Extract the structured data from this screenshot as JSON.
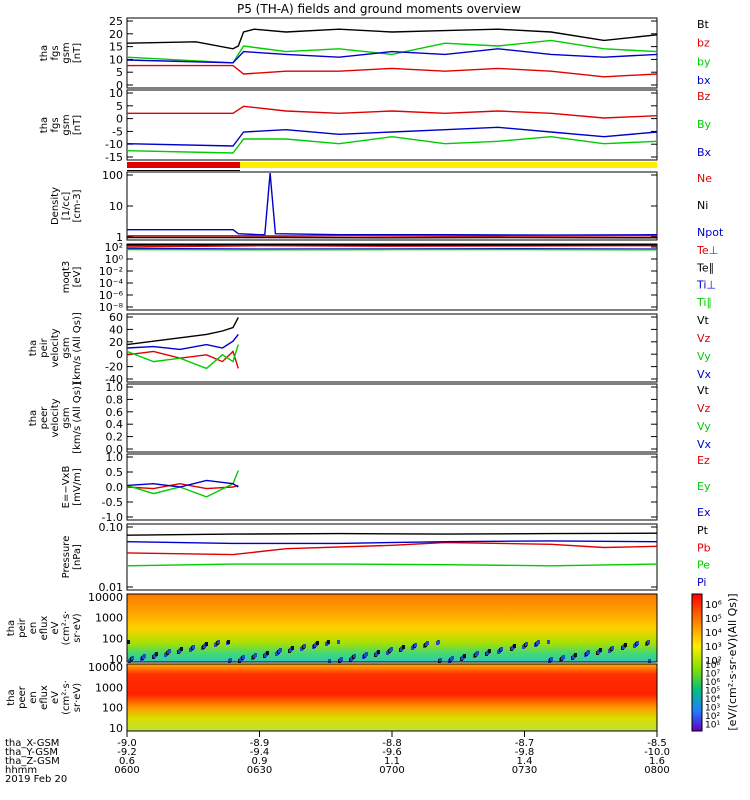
{
  "title": "P5 (TH-A) fields and ground moments overview",
  "panels": [
    {
      "id": "fgs_gsm",
      "ylabel": [
        "tha",
        "fgs",
        "gsm",
        "[nT]"
      ],
      "ticks": [
        "25",
        "20",
        "15",
        "10",
        "5",
        "0"
      ],
      "scale": "linear",
      "ylim": [
        0,
        25
      ],
      "legend": [
        {
          "text": "Bt",
          "color": "#000000"
        },
        {
          "text": "bz",
          "color": "#e00000"
        },
        {
          "text": "by",
          "color": "#00cc00"
        },
        {
          "text": "bx",
          "color": "#0000cc"
        }
      ]
    },
    {
      "id": "fgs_gse",
      "ylabel": [
        "tha",
        "fgs",
        "gsm",
        "[nT]"
      ],
      "ticks": [
        "10",
        "5",
        "0",
        "-5",
        "-10",
        "-15"
      ],
      "scale": "linear",
      "ylim": [
        -18,
        12
      ],
      "legend": [
        {
          "text": "Bz",
          "color": "#e00000"
        },
        {
          "text": "By",
          "color": "#00cc00"
        },
        {
          "text": "Bx",
          "color": "#0000cc"
        }
      ]
    },
    {
      "id": "density",
      "ylabel": [
        "Density",
        "[1/cc]",
        "[cm-3]"
      ],
      "ticks": [
        "100",
        "10",
        "1"
      ],
      "scale": "log",
      "ylim": [
        0.3,
        200
      ],
      "legend": [
        {
          "text": "Ne",
          "color": "#e00000"
        },
        {
          "text": "Ni",
          "color": "#000000"
        },
        {
          "text": "Npot",
          "color": "#0000cc"
        }
      ]
    },
    {
      "id": "temp",
      "ylabel": [
        "moqt3",
        "[eV]"
      ],
      "ticks": [
        "10²",
        "10⁰",
        "10⁻²",
        "10⁻⁴",
        "10⁻⁶",
        "10⁻⁸"
      ],
      "scale": "log",
      "ylim": [
        1e-09,
        1000.0
      ],
      "legend": [
        {
          "text": "Te⊥",
          "color": "#e00000"
        },
        {
          "text": "Te∥",
          "color": "#000000"
        },
        {
          "text": "Ti⊥",
          "color": "#0000cc"
        },
        {
          "text": "Ti∥",
          "color": "#00cc00"
        }
      ]
    },
    {
      "id": "vi",
      "ylabel": [
        "tha",
        "peir",
        "velocity",
        "gsm",
        "[km/s (All Qs)]"
      ],
      "ticks": [
        "60",
        "40",
        "20",
        "0",
        "-20",
        "-40"
      ],
      "scale": "linear",
      "ylim": [
        -40,
        60
      ],
      "legend": [
        {
          "text": "Vt",
          "color": "#000000"
        },
        {
          "text": "Vz",
          "color": "#e00000"
        },
        {
          "text": "Vy",
          "color": "#00cc00"
        },
        {
          "text": "Vx",
          "color": "#0000cc"
        }
      ]
    },
    {
      "id": "ve",
      "ylabel": [
        "tha",
        "peer",
        "velocity",
        "gsm",
        "[km/s (All Qs)]"
      ],
      "ticks": [
        "1.0",
        "0.8",
        "0.6",
        "0.4",
        "0.2",
        "0.0"
      ],
      "scale": "linear",
      "ylim": [
        0,
        1
      ],
      "legend": [
        {
          "text": "Vt",
          "color": "#000000"
        },
        {
          "text": "Vz",
          "color": "#e00000"
        },
        {
          "text": "Vy",
          "color": "#00cc00"
        },
        {
          "text": "Vx",
          "color": "#0000cc"
        }
      ]
    },
    {
      "id": "efield",
      "ylabel": [
        "E=−VxB",
        "[mV/m]"
      ],
      "ticks": [
        "1.0",
        "0.5",
        "0.0",
        "-0.5",
        "-1.0"
      ],
      "scale": "linear",
      "ylim": [
        -1,
        1
      ],
      "legend": [
        {
          "text": "Ez",
          "color": "#e00000"
        },
        {
          "text": "Ey",
          "color": "#00cc00"
        },
        {
          "text": "Ex",
          "color": "#0000cc"
        }
      ]
    },
    {
      "id": "pressure",
      "ylabel": [
        "Pressure",
        "[nPa]"
      ],
      "ticks": [
        "0.10",
        "0.01"
      ],
      "scale": "log",
      "ylim": [
        0.01,
        0.6
      ],
      "legend": [
        {
          "text": "Pt",
          "color": "#000000"
        },
        {
          "text": "Pb",
          "color": "#e00000"
        },
        {
          "text": "Pe",
          "color": "#00cc00"
        },
        {
          "text": "Pi",
          "color": "#0000cc"
        }
      ]
    },
    {
      "id": "ion_spec",
      "ylabel": [
        "tha",
        "peir",
        "en",
        "eflux",
        "eV",
        "(cm²·s·",
        "sr·eV)"
      ],
      "ticks": [
        "10000",
        "1000",
        "100",
        "10"
      ],
      "scale": "log",
      "ylim": [
        5,
        25000
      ]
    },
    {
      "id": "elec_spec",
      "ylabel": [
        "tha",
        "peer",
        "en",
        "eflux",
        "eV",
        "(cm²·s·",
        "sr·eV)"
      ],
      "ticks": [
        "10000",
        "1000",
        "100",
        "10"
      ],
      "scale": "log",
      "ylim": [
        5,
        25000
      ]
    }
  ],
  "colorbar": {
    "label": "[eV/(cm²·s·sr·eV)(All Qs)]",
    "top_ticks": [
      "10⁶",
      "10⁵",
      "10⁴",
      "10³",
      "10²"
    ],
    "bottom_ticks": [
      "10⁸",
      "10⁷",
      "10⁶",
      "10⁵",
      "10⁴",
      "10³",
      "10²",
      "10¹"
    ]
  },
  "xaxis": {
    "row_labels": [
      "tha_X-GSM",
      "tha_Y-GSM",
      "tha_Z-GSM",
      "hhmm",
      "2019 Feb 20"
    ],
    "columns": [
      {
        "x": "-9.0",
        "y": "-9.2",
        "z": "0.6",
        "t": "0600"
      },
      {
        "x": "-8.9",
        "y": "-9.4",
        "z": "0.9",
        "t": "0630"
      },
      {
        "x": "-8.8",
        "y": "-9.6",
        "z": "1.1",
        "t": "0700"
      },
      {
        "x": "-8.7",
        "y": "-9.8",
        "z": "1.4",
        "t": "0730"
      },
      {
        "x": "-8.5",
        "y": "-10.0",
        "z": "1.6",
        "t": "0800"
      }
    ]
  },
  "chart_data": {
    "type": "line",
    "time_range": [
      "0600",
      "0800"
    ],
    "series": [
      {
        "panel": "fgs_gsm",
        "name": "Bt",
        "color": "#000000",
        "t": [
          0,
          0.13,
          0.2,
          0.21,
          0.22,
          0.24,
          0.3,
          0.4,
          0.5,
          0.6,
          0.7,
          0.8,
          0.9,
          1
        ],
        "y": [
          16,
          16.5,
          14,
          15,
          20,
          21,
          20,
          21,
          20,
          20.5,
          21,
          20,
          17,
          19
        ]
      },
      {
        "panel": "fgs_gsm",
        "name": "bz",
        "color": "#e00000",
        "t": [
          0,
          0.2,
          0.22,
          0.3,
          0.4,
          0.5,
          0.6,
          0.7,
          0.8,
          0.9,
          1
        ],
        "y": [
          8,
          8,
          5,
          6,
          6,
          7,
          6,
          7,
          6,
          4,
          5
        ]
      },
      {
        "panel": "fgs_gsm",
        "name": "by",
        "color": "#00cc00",
        "t": [
          0,
          0.2,
          0.22,
          0.3,
          0.4,
          0.5,
          0.6,
          0.7,
          0.8,
          0.9,
          1
        ],
        "y": [
          11,
          9,
          15,
          13,
          14,
          12,
          16,
          15,
          17,
          14,
          13
        ]
      },
      {
        "panel": "fgs_gsm",
        "name": "bx",
        "color": "#0000cc",
        "t": [
          0,
          0.2,
          0.22,
          0.3,
          0.4,
          0.5,
          0.6,
          0.7,
          0.8,
          0.9,
          1
        ],
        "y": [
          10,
          9,
          13,
          12,
          11,
          13,
          12,
          14,
          12,
          11,
          12
        ]
      },
      {
        "panel": "fgs_gse",
        "name": "Bz",
        "color": "#e00000",
        "t": [
          0,
          0.2,
          0.22,
          0.3,
          0.4,
          0.5,
          0.6,
          0.7,
          0.8,
          0.9,
          1
        ],
        "y": [
          2,
          2,
          5,
          3,
          2,
          3,
          2,
          3,
          2,
          0,
          1
        ]
      },
      {
        "panel": "fgs_gse",
        "name": "By",
        "color": "#00cc00",
        "t": [
          0,
          0.2,
          0.22,
          0.3,
          0.4,
          0.5,
          0.6,
          0.7,
          0.8,
          0.9,
          1
        ],
        "y": [
          -14,
          -15,
          -9,
          -9,
          -11,
          -8,
          -11,
          -10,
          -8,
          -11,
          -10
        ]
      },
      {
        "panel": "fgs_gse",
        "name": "Bx",
        "color": "#0000cc",
        "t": [
          0,
          0.2,
          0.22,
          0.3,
          0.4,
          0.5,
          0.6,
          0.7,
          0.8,
          0.9,
          1
        ],
        "y": [
          -11,
          -12,
          -6,
          -5,
          -7,
          -6,
          -5,
          -4,
          -6,
          -8,
          -6
        ]
      },
      {
        "panel": "density",
        "name": "Npot",
        "color": "#0000cc",
        "t": [
          0,
          0.2,
          0.21,
          0.25,
          0.26,
          0.27,
          0.28,
          0.4,
          0.6,
          0.8,
          1
        ],
        "y": [
          0.8,
          0.8,
          0.55,
          0.5,
          0.5,
          180,
          0.55,
          0.5,
          0.5,
          0.48,
          0.5
        ]
      },
      {
        "panel": "density",
        "name": "Ne",
        "color": "#e00000",
        "t": [
          0,
          0.2,
          0.3,
          0.4,
          0.6,
          0.8,
          1
        ],
        "y": [
          0.45,
          0.45,
          0.44,
          0.45,
          0.43,
          0.44,
          0.45
        ]
      },
      {
        "panel": "density",
        "name": "Ni",
        "color": "#000000",
        "t": [
          0,
          0.2,
          0.3,
          0.5,
          0.7,
          1
        ],
        "y": [
          0.38,
          0.38,
          0.38,
          0.37,
          0.38,
          0.37
        ]
      },
      {
        "panel": "temp",
        "name": "Te⊥",
        "color": "#e00000",
        "t": [
          0,
          0.25,
          0.5,
          0.75,
          1
        ],
        "y": [
          300,
          500,
          400,
          450,
          500
        ]
      },
      {
        "panel": "temp",
        "name": "Te∥",
        "color": "#000000",
        "t": [
          0,
          0.25,
          0.5,
          0.75,
          1
        ],
        "y": [
          600,
          800,
          700,
          700,
          750
        ]
      },
      {
        "panel": "temp",
        "name": "Ti⊥",
        "color": "#0000cc",
        "t": [
          0,
          0.25,
          0.5,
          0.75,
          1
        ],
        "y": [
          150,
          120,
          130,
          140,
          120
        ]
      },
      {
        "panel": "temp",
        "name": "Ti∥",
        "color": "#00cc00",
        "t": [
          0,
          0.25,
          0.5,
          0.75,
          1
        ],
        "y": [
          100,
          90,
          95,
          100,
          90
        ]
      },
      {
        "panel": "vi",
        "name": "Vt",
        "color": "#000000",
        "t": [
          0,
          0.05,
          0.1,
          0.15,
          0.18,
          0.2,
          0.21
        ],
        "y": [
          15,
          20,
          25,
          30,
          35,
          40,
          55
        ]
      },
      {
        "panel": "vi",
        "name": "Vz",
        "color": "#e00000",
        "t": [
          0,
          0.05,
          0.1,
          0.15,
          0.18,
          0.2,
          0.21
        ],
        "y": [
          0,
          5,
          -5,
          0,
          -10,
          5,
          -20
        ]
      },
      {
        "panel": "vi",
        "name": "Vy",
        "color": "#00cc00",
        "t": [
          0,
          0.05,
          0.1,
          0.15,
          0.18,
          0.2,
          0.21
        ],
        "y": [
          5,
          -10,
          -5,
          -20,
          0,
          -10,
          15
        ]
      },
      {
        "panel": "vi",
        "name": "Vx",
        "color": "#0000cc",
        "t": [
          0,
          0.05,
          0.1,
          0.15,
          0.18,
          0.2,
          0.21
        ],
        "y": [
          10,
          12,
          8,
          15,
          10,
          20,
          30
        ]
      },
      {
        "panel": "efield",
        "name": "Ez",
        "color": "#e00000",
        "t": [
          0,
          0.05,
          0.1,
          0.15,
          0.2,
          0.21
        ],
        "y": [
          0,
          -0.05,
          0.1,
          -0.05,
          0,
          0.05
        ]
      },
      {
        "panel": "efield",
        "name": "Ey",
        "color": "#00cc00",
        "t": [
          0,
          0.05,
          0.1,
          0.15,
          0.2,
          0.21
        ],
        "y": [
          0.05,
          -0.2,
          0,
          -0.3,
          0.1,
          0.5
        ]
      },
      {
        "panel": "efield",
        "name": "Ex",
        "color": "#0000cc",
        "t": [
          0,
          0.05,
          0.1,
          0.15,
          0.2,
          0.21
        ],
        "y": [
          0.05,
          0.1,
          0,
          0.2,
          0.1,
          0
        ]
      },
      {
        "panel": "pressure",
        "name": "Pt",
        "color": "#000000",
        "t": [
          0,
          0.2,
          0.4,
          0.6,
          0.8,
          1
        ],
        "y": [
          0.3,
          0.32,
          0.33,
          0.32,
          0.33,
          0.34
        ]
      },
      {
        "panel": "pressure",
        "name": "Pb",
        "color": "#e00000",
        "t": [
          0,
          0.2,
          0.3,
          0.5,
          0.6,
          0.8,
          0.9,
          1
        ],
        "y": [
          0.1,
          0.09,
          0.13,
          0.16,
          0.19,
          0.17,
          0.14,
          0.15
        ]
      },
      {
        "panel": "pressure",
        "name": "Pe",
        "color": "#00cc00",
        "t": [
          0,
          0.2,
          0.4,
          0.6,
          0.8,
          1
        ],
        "y": [
          0.045,
          0.05,
          0.05,
          0.048,
          0.045,
          0.05
        ]
      },
      {
        "panel": "pressure",
        "name": "Pi",
        "color": "#0000cc",
        "t": [
          0,
          0.2,
          0.4,
          0.6,
          0.8,
          1
        ],
        "y": [
          0.2,
          0.18,
          0.18,
          0.2,
          0.21,
          0.2
        ]
      }
    ]
  }
}
